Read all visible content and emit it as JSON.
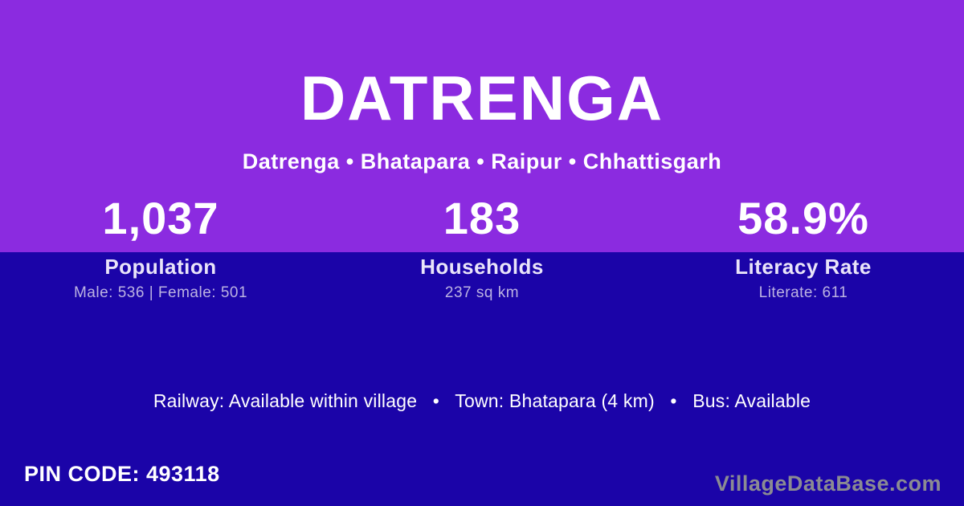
{
  "colors": {
    "top_background": "#8B2BE0",
    "bottom_background": "#1B04A8",
    "title_text": "#FFFFFF",
    "stat_label_text": "#E9E4F9",
    "stat_detail_text": "#BCB3E2",
    "watermark_text": "#8B8B92"
  },
  "header": {
    "title": "DATRENGA",
    "breadcrumb": "Datrenga • Bhatapara • Raipur • Chhattisgarh"
  },
  "stats": [
    {
      "value": "1,037",
      "label": "Population",
      "detail": "Male: 536 | Female: 501"
    },
    {
      "value": "183",
      "label": "Households",
      "detail": "237 sq km"
    },
    {
      "value": "58.9%",
      "label": "Literacy Rate",
      "detail": "Literate: 611"
    }
  ],
  "transport": {
    "separator": "•",
    "items": [
      "Railway: Available within village",
      "Town: Bhatapara (4 km)",
      "Bus: Available"
    ]
  },
  "footer": {
    "pin_code": "PIN CODE: 493118",
    "watermark": "VillageDataBase.com"
  }
}
